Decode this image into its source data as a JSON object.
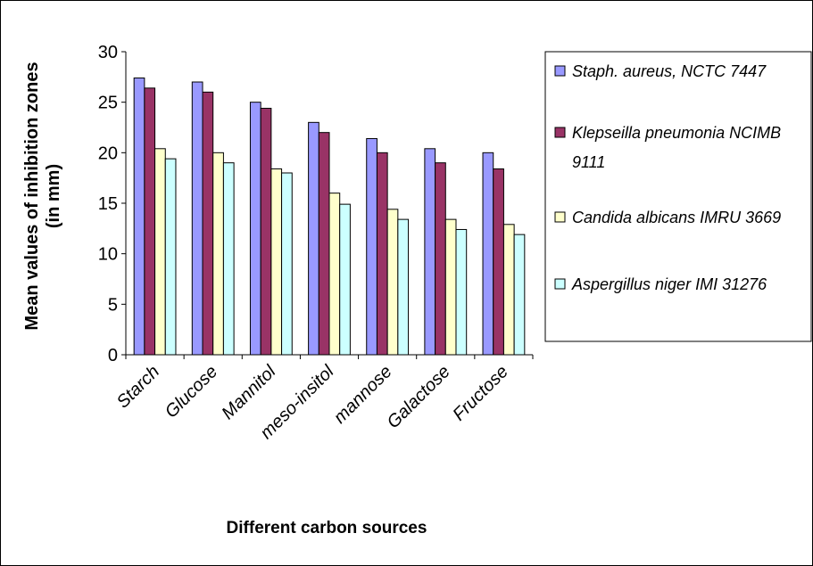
{
  "chart_data": {
    "type": "bar",
    "categories": [
      "Starch",
      "Glucose",
      "Mannitol",
      "meso-insitol",
      "mannose",
      "Galactose",
      "Fructose"
    ],
    "series": [
      {
        "name": "Staph. aureus, NCTC 7447",
        "name_lines": [
          "Staph. aureus, NCTC 7447"
        ],
        "color": "#9999FF",
        "values": [
          27.4,
          27.0,
          25.0,
          23.0,
          21.4,
          20.4,
          20.0
        ]
      },
      {
        "name": "Klepseilla pneumonia NCIMB 9111",
        "name_lines": [
          "Klepseilla pneumonia NCIMB",
          "9111"
        ],
        "color": "#993366",
        "values": [
          26.4,
          26.0,
          24.4,
          22.0,
          20.0,
          19.0,
          18.4
        ]
      },
      {
        "name": "Candida albicans IMRU 3669",
        "name_lines": [
          "Candida albicans IMRU 3669"
        ],
        "color": "#FFFFCC",
        "values": [
          20.4,
          20.0,
          18.4,
          16.0,
          14.4,
          13.4,
          12.9
        ]
      },
      {
        "name": "Aspergillus niger IMI 31276",
        "name_lines": [
          "Aspergillus niger IMI 31276"
        ],
        "color": "#CCFFFF",
        "values": [
          19.4,
          19.0,
          18.0,
          14.9,
          13.4,
          12.4,
          11.9
        ]
      }
    ],
    "xlabel": "Different carbon sources",
    "ylabel_lines": [
      "Mean values of inhibition zones",
      "(in mm)"
    ],
    "ylim": [
      0,
      30
    ],
    "yticks": [
      "0",
      "5",
      "10",
      "15",
      "20",
      "25",
      "30"
    ],
    "grid": false,
    "legend_position": "right"
  }
}
